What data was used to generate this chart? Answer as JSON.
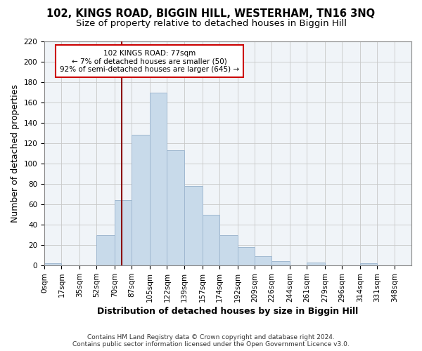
{
  "title": "102, KINGS ROAD, BIGGIN HILL, WESTERHAM, TN16 3NQ",
  "subtitle": "Size of property relative to detached houses in Biggin Hill",
  "xlabel": "Distribution of detached houses by size in Biggin Hill",
  "ylabel": "Number of detached properties",
  "bar_color": "#c8daea",
  "bar_edge_color": "#a0b8d0",
  "bin_labels": [
    "0sqm",
    "17sqm",
    "35sqm",
    "52sqm",
    "70sqm",
    "87sqm",
    "105sqm",
    "122sqm",
    "139sqm",
    "157sqm",
    "174sqm",
    "192sqm",
    "209sqm",
    "226sqm",
    "244sqm",
    "261sqm",
    "279sqm",
    "296sqm",
    "314sqm",
    "331sqm",
    "348sqm"
  ],
  "bar_heights": [
    2,
    0,
    0,
    30,
    64,
    128,
    170,
    113,
    78,
    50,
    30,
    18,
    9,
    4,
    0,
    3,
    0,
    0,
    2,
    0,
    0
  ],
  "ylim": [
    0,
    220
  ],
  "yticks": [
    0,
    20,
    40,
    60,
    80,
    100,
    120,
    140,
    160,
    180,
    200,
    220
  ],
  "property_line_x": 77,
  "property_line_color": "#8b0000",
  "annotation_line1": "102 KINGS ROAD: 77sqm",
  "annotation_line2": "← 7% of detached houses are smaller (50)",
  "annotation_line3": "92% of semi-detached houses are larger (645) →",
  "annotation_box_edge_color": "#cc0000",
  "footer_line1": "Contains HM Land Registry data © Crown copyright and database right 2024.",
  "footer_line2": "Contains public sector information licensed under the Open Government Licence v3.0.",
  "bin_edges": [
    0,
    17,
    35,
    52,
    70,
    87,
    105,
    122,
    139,
    157,
    174,
    192,
    209,
    226,
    244,
    261,
    279,
    296,
    314,
    331,
    348,
    365
  ],
  "title_fontsize": 10.5,
  "subtitle_fontsize": 9.5,
  "axis_label_fontsize": 9,
  "tick_fontsize": 7.5,
  "footer_fontsize": 6.5
}
